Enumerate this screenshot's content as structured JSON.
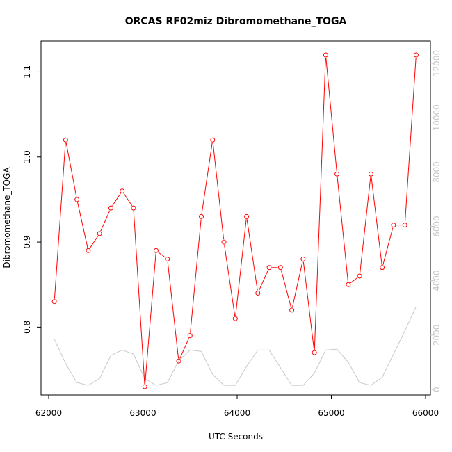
{
  "chart_data": {
    "type": "line",
    "title": "ORCAS RF02miz Dibromomethane_TOGA",
    "xlabel": "UTC Seconds",
    "ylabel": "Dibromomethane_TOGA",
    "xlim": [
      62000,
      66000
    ],
    "ylim": [
      0.73,
      1.12
    ],
    "y2lim": [
      0,
      12300
    ],
    "x_ticks": [
      "62000",
      "63000",
      "64000",
      "65000",
      "66000"
    ],
    "y_ticks": [
      "0.8",
      "0.9",
      "1.0",
      "1.1"
    ],
    "y2_ticks": [
      "0",
      "2000",
      "4000",
      "6000",
      "8000",
      "10000",
      "12000"
    ],
    "grid": false,
    "series": [
      {
        "color": "#ff0000",
        "axis": "left",
        "marker": "open-circle",
        "x": [
          62060,
          62180,
          62300,
          62420,
          62540,
          62660,
          62780,
          62900,
          63020,
          63140,
          63260,
          63380,
          63500,
          63620,
          63740,
          63860,
          63980,
          64100,
          64220,
          64340,
          64460,
          64580,
          64700,
          64820,
          64940,
          65060,
          65180,
          65300,
          65420,
          65540,
          65660,
          65780,
          65900
        ],
        "y": [
          0.83,
          1.02,
          0.95,
          0.89,
          0.91,
          0.94,
          0.96,
          0.94,
          0.73,
          0.89,
          0.88,
          0.76,
          0.79,
          0.93,
          1.02,
          0.9,
          0.81,
          0.93,
          0.84,
          0.87,
          0.87,
          0.82,
          0.88,
          0.77,
          1.12,
          0.98,
          0.85,
          0.86,
          0.98,
          0.87,
          0.92,
          0.92,
          1.12
        ]
      },
      {
        "color": "#c8c8c8",
        "axis": "right",
        "marker": "none",
        "x": [
          62060,
          62180,
          62300,
          62420,
          62540,
          62660,
          62780,
          62900,
          63020,
          63140,
          63260,
          63380,
          63500,
          63620,
          63740,
          63860,
          63980,
          64100,
          64220,
          64340,
          64460,
          64580,
          64700,
          64820,
          64940,
          65060,
          65180,
          65300,
          65420,
          65540,
          65660,
          65780,
          65900
        ],
        "y": [
          1850,
          950,
          250,
          150,
          400,
          1250,
          1450,
          1300,
          400,
          150,
          250,
          1050,
          1450,
          1400,
          550,
          150,
          150,
          850,
          1450,
          1450,
          800,
          150,
          150,
          600,
          1450,
          1480,
          1000,
          250,
          150,
          450,
          1300,
          2150,
          3050
        ]
      }
    ]
  }
}
